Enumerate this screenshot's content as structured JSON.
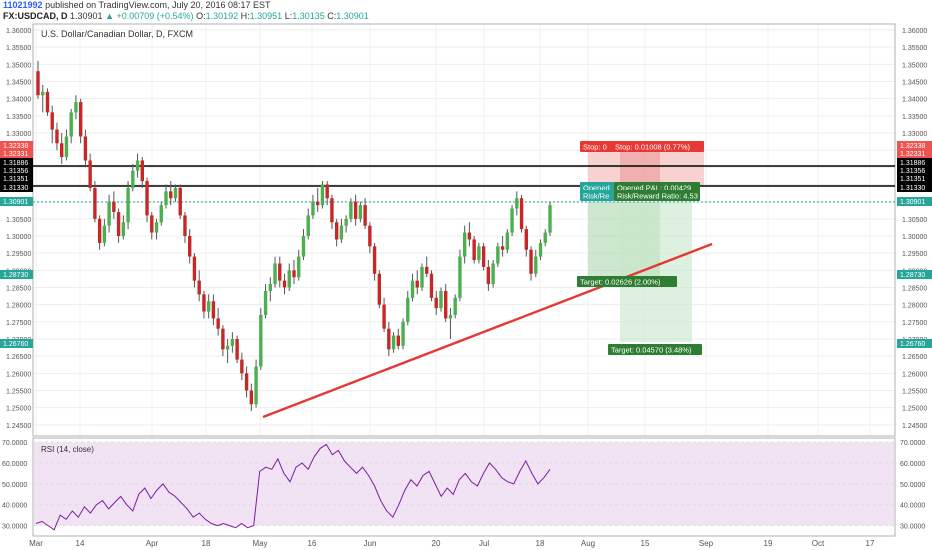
{
  "header": {
    "user": "11021992",
    "published": "published on TradingView.com, July 20, 2016 08:17 EST",
    "symbol": "FX:USDCAD, D",
    "last": "1.30901",
    "change": "▲ +0.00709 (+0.54%)",
    "o_label": "O:",
    "o_val": "1.30192",
    "h_label": "H:",
    "h_val": "1.30951",
    "l_label": "L:",
    "l_val": "1.30135",
    "c_label": "C:",
    "c_val": "1.30901"
  },
  "chart_data": [
    {
      "type": "candlestick",
      "title": "U.S. Dollar/Canadian Dollar, D, FXCM",
      "ylim": [
        1.24,
        1.36
      ],
      "y_ticks": [
        "1.36000",
        "1.35500",
        "1.35000",
        "1.34500",
        "1.34000",
        "1.33500",
        "1.33000",
        "1.32500",
        "1.32000",
        "1.31500",
        "1.31000",
        "1.30500",
        "1.30000",
        "1.29500",
        "1.29000",
        "1.28500",
        "1.28000",
        "1.27500",
        "1.27000",
        "1.26500",
        "1.26000",
        "1.25500",
        "1.25000",
        "1.24500"
      ],
      "x_ticks": [
        "Mar",
        "14",
        "Apr",
        "18",
        "May",
        "16",
        "Jun",
        "20",
        "Jul",
        "18",
        "Aug",
        "15",
        "Sep",
        "19",
        "Oct",
        "17"
      ],
      "candles": [
        [
          1.348,
          1.351,
          1.34,
          1.341
        ],
        [
          1.341,
          1.344,
          1.336,
          1.342
        ],
        [
          1.342,
          1.343,
          1.335,
          1.336
        ],
        [
          1.336,
          1.338,
          1.327,
          1.331
        ],
        [
          1.331,
          1.333,
          1.325,
          1.327
        ],
        [
          1.327,
          1.33,
          1.321,
          1.323
        ],
        [
          1.323,
          1.331,
          1.322,
          1.329
        ],
        [
          1.329,
          1.337,
          1.327,
          1.336
        ],
        [
          1.336,
          1.341,
          1.334,
          1.339
        ],
        [
          1.339,
          1.34,
          1.327,
          1.329
        ],
        [
          1.329,
          1.331,
          1.32,
          1.322
        ],
        [
          1.322,
          1.324,
          1.313,
          1.314
        ],
        [
          1.314,
          1.316,
          1.304,
          1.305
        ],
        [
          1.305,
          1.306,
          1.296,
          1.298
        ],
        [
          1.298,
          1.305,
          1.297,
          1.303
        ],
        [
          1.303,
          1.312,
          1.301,
          1.31
        ],
        [
          1.31,
          1.313,
          1.305,
          1.307
        ],
        [
          1.307,
          1.308,
          1.298,
          1.3
        ],
        [
          1.3,
          1.306,
          1.299,
          1.304
        ],
        [
          1.304,
          1.316,
          1.302,
          1.314
        ],
        [
          1.314,
          1.321,
          1.313,
          1.319
        ],
        [
          1.319,
          1.324,
          1.317,
          1.322
        ],
        [
          1.322,
          1.323,
          1.314,
          1.316
        ],
        [
          1.316,
          1.317,
          1.304,
          1.306
        ],
        [
          1.306,
          1.307,
          1.299,
          1.301
        ],
        [
          1.301,
          1.305,
          1.299,
          1.304
        ],
        [
          1.304,
          1.31,
          1.303,
          1.309
        ],
        [
          1.309,
          1.315,
          1.308,
          1.313
        ],
        [
          1.313,
          1.316,
          1.309,
          1.311
        ],
        [
          1.311,
          1.315,
          1.31,
          1.314
        ],
        [
          1.314,
          1.315,
          1.305,
          1.306
        ],
        [
          1.306,
          1.307,
          1.298,
          1.3
        ],
        [
          1.3,
          1.302,
          1.292,
          1.294
        ],
        [
          1.294,
          1.295,
          1.285,
          1.287
        ],
        [
          1.287,
          1.29,
          1.281,
          1.283
        ],
        [
          1.283,
          1.284,
          1.276,
          1.278
        ],
        [
          1.278,
          1.283,
          1.276,
          1.281
        ],
        [
          1.281,
          1.283,
          1.274,
          1.276
        ],
        [
          1.276,
          1.279,
          1.271,
          1.273
        ],
        [
          1.273,
          1.274,
          1.265,
          1.267
        ],
        [
          1.267,
          1.27,
          1.263,
          1.268
        ],
        [
          1.268,
          1.272,
          1.266,
          1.27
        ],
        [
          1.27,
          1.271,
          1.263,
          1.264
        ],
        [
          1.264,
          1.266,
          1.258,
          1.26
        ],
        [
          1.26,
          1.262,
          1.253,
          1.255
        ],
        [
          1.255,
          1.257,
          1.249,
          1.251
        ],
        [
          1.251,
          1.264,
          1.25,
          1.262
        ],
        [
          1.262,
          1.279,
          1.261,
          1.277
        ],
        [
          1.277,
          1.286,
          1.276,
          1.284
        ],
        [
          1.284,
          1.288,
          1.281,
          1.286
        ],
        [
          1.286,
          1.294,
          1.285,
          1.292
        ],
        [
          1.292,
          1.294,
          1.285,
          1.287
        ],
        [
          1.287,
          1.289,
          1.283,
          1.285
        ],
        [
          1.285,
          1.292,
          1.284,
          1.29
        ],
        [
          1.29,
          1.293,
          1.286,
          1.288
        ],
        [
          1.288,
          1.296,
          1.287,
          1.294
        ],
        [
          1.294,
          1.302,
          1.293,
          1.3
        ],
        [
          1.3,
          1.308,
          1.299,
          1.306
        ],
        [
          1.306,
          1.312,
          1.305,
          1.31
        ],
        [
          1.31,
          1.314,
          1.307,
          1.309
        ],
        [
          1.309,
          1.316,
          1.308,
          1.315
        ],
        [
          1.315,
          1.316,
          1.309,
          1.311
        ],
        [
          1.311,
          1.312,
          1.302,
          1.304
        ],
        [
          1.304,
          1.305,
          1.297,
          1.299
        ],
        [
          1.299,
          1.305,
          1.298,
          1.303
        ],
        [
          1.303,
          1.306,
          1.301,
          1.305
        ],
        [
          1.305,
          1.311,
          1.304,
          1.31
        ],
        [
          1.31,
          1.312,
          1.303,
          1.305
        ],
        [
          1.305,
          1.31,
          1.304,
          1.309
        ],
        [
          1.309,
          1.311,
          1.302,
          1.303
        ],
        [
          1.303,
          1.304,
          1.295,
          1.297
        ],
        [
          1.297,
          1.298,
          1.287,
          1.289
        ],
        [
          1.289,
          1.29,
          1.279,
          1.28
        ],
        [
          1.28,
          1.282,
          1.272,
          1.273
        ],
        [
          1.273,
          1.275,
          1.265,
          1.267
        ],
        [
          1.267,
          1.272,
          1.266,
          1.271
        ],
        [
          1.271,
          1.273,
          1.267,
          1.268
        ],
        [
          1.268,
          1.276,
          1.267,
          1.275
        ],
        [
          1.275,
          1.284,
          1.274,
          1.282
        ],
        [
          1.282,
          1.289,
          1.281,
          1.287
        ],
        [
          1.287,
          1.29,
          1.283,
          1.285
        ],
        [
          1.285,
          1.292,
          1.284,
          1.291
        ],
        [
          1.291,
          1.294,
          1.288,
          1.289
        ],
        [
          1.289,
          1.29,
          1.281,
          1.282
        ],
        [
          1.282,
          1.284,
          1.277,
          1.279
        ],
        [
          1.279,
          1.285,
          1.278,
          1.284
        ],
        [
          1.284,
          1.286,
          1.275,
          1.276
        ],
        [
          1.276,
          1.279,
          1.27,
          1.277
        ],
        [
          1.277,
          1.283,
          1.276,
          1.282
        ],
        [
          1.282,
          1.296,
          1.281,
          1.294
        ],
        [
          1.294,
          1.303,
          1.292,
          1.301
        ],
        [
          1.301,
          1.304,
          1.297,
          1.299
        ],
        [
          1.299,
          1.3,
          1.292,
          1.293
        ],
        [
          1.293,
          1.298,
          1.292,
          1.297
        ],
        [
          1.297,
          1.298,
          1.29,
          1.291
        ],
        [
          1.291,
          1.293,
          1.284,
          1.286
        ],
        [
          1.286,
          1.293,
          1.285,
          1.292
        ],
        [
          1.292,
          1.298,
          1.291,
          1.297
        ],
        [
          1.297,
          1.3,
          1.294,
          1.296
        ],
        [
          1.296,
          1.302,
          1.295,
          1.301
        ],
        [
          1.301,
          1.309,
          1.3,
          1.308
        ],
        [
          1.308,
          1.313,
          1.306,
          1.311
        ],
        [
          1.311,
          1.312,
          1.301,
          1.302
        ],
        [
          1.302,
          1.303,
          1.294,
          1.296
        ],
        [
          1.296,
          1.297,
          1.287,
          1.289
        ],
        [
          1.289,
          1.296,
          1.288,
          1.294
        ],
        [
          1.294,
          1.299,
          1.293,
          1.298
        ],
        [
          1.298,
          1.302,
          1.297,
          1.301
        ],
        [
          1.301,
          1.31,
          1.3,
          1.309
        ]
      ],
      "horizontal_levels": [
        "1.31886",
        "1.31356",
        "1.31330"
      ],
      "current_price_label": "1.30901",
      "right_axis_tags": [
        {
          "text": "1.32338",
          "color": "#ef5350"
        },
        {
          "text": "1.32331",
          "color": "#ef5350"
        },
        {
          "text": "1.31886",
          "color": "#000000"
        },
        {
          "text": "1.31356",
          "color": "#000000"
        },
        {
          "text": "1.31351",
          "color": "#000000"
        },
        {
          "text": "1.31330",
          "color": "#000000"
        },
        {
          "text": "1.30901",
          "color": "#26a69a"
        },
        {
          "text": "1.28730",
          "color": "#26a69a"
        },
        {
          "text": "1.26760",
          "color": "#26a69a"
        }
      ],
      "left_axis_tags": [
        {
          "text": "1.32338",
          "color": "#ef5350"
        },
        {
          "text": "1.32331",
          "color": "#ef5350"
        },
        {
          "text": "1.31886",
          "color": "#000000"
        },
        {
          "text": "1.31356",
          "color": "#000000"
        },
        {
          "text": "1.31351",
          "color": "#000000"
        },
        {
          "text": "1.31330",
          "color": "#000000"
        },
        {
          "text": "1.30901",
          "color": "#26a69a"
        },
        {
          "text": "1.28730",
          "color": "#26a69a"
        },
        {
          "text": "1.26760",
          "color": "#26a69a"
        }
      ],
      "trendline": {
        "color": "#e53935"
      },
      "annotations": {
        "stop": "Stop: 0",
        "stop2": "Stop: 0.01008 (0.77%)",
        "opened1": "Opened",
        "riskreward1": "Risk/Re",
        "opened_pl": "Opened P&L: 0.00429",
        "riskreward2": "Risk/Reward Ratio: 4.53",
        "target1": "Target: 0.02626 (2.00%)",
        "target2": "Target: 0.04570 (3.48%)"
      }
    },
    {
      "type": "line",
      "title": "RSI (14, close)",
      "ylim": [
        25,
        72
      ],
      "y_ticks": [
        "70.0000",
        "60.0000",
        "50.0000",
        "40.0000",
        "30.0000"
      ],
      "values": [
        31,
        32,
        30,
        28,
        35,
        33,
        37,
        34,
        39,
        36,
        40,
        42,
        38,
        41,
        44,
        40,
        37,
        45,
        48,
        43,
        47,
        50,
        46,
        44,
        41,
        38,
        34,
        36,
        33,
        31,
        30,
        31,
        30,
        29,
        31,
        29,
        30,
        56,
        58,
        57,
        62,
        55,
        51,
        58,
        60,
        57,
        63,
        67,
        69,
        64,
        66,
        61,
        58,
        55,
        58,
        54,
        49,
        42,
        37,
        34,
        40,
        47,
        52,
        49,
        54,
        56,
        50,
        44,
        48,
        45,
        52,
        55,
        51,
        49,
        55,
        60,
        57,
        53,
        51,
        50,
        56,
        61,
        55,
        50,
        53,
        57
      ],
      "color": "#7b1fa2"
    }
  ]
}
